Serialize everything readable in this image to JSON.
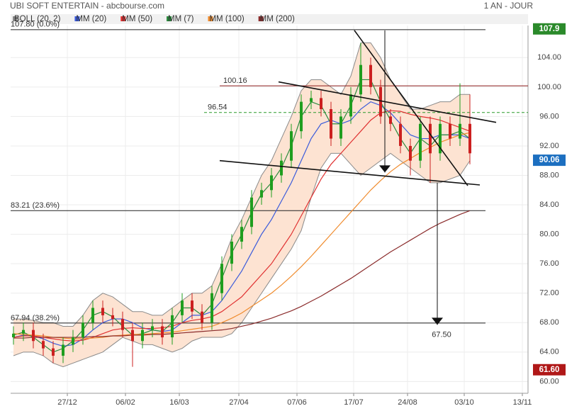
{
  "chart_data": {
    "type": "candlestick",
    "title": "UBI SOFT ENTERTAIN - abcbourse.com",
    "subtitle": "1 AN - JOUR",
    "xlim": [
      -40,
      325
    ],
    "ylim": [
      58.4,
      109.9
    ],
    "xticks": [
      {
        "value": 0,
        "label": "27/12"
      },
      {
        "value": 41,
        "label": "06/02"
      },
      {
        "value": 79,
        "label": "16/03"
      },
      {
        "value": 121,
        "label": "27/04"
      },
      {
        "value": 162,
        "label": "07/06"
      },
      {
        "value": 202,
        "label": "17/07"
      },
      {
        "value": 240,
        "label": "24/08"
      },
      {
        "value": 280,
        "label": "03/10"
      },
      {
        "value": 321,
        "label": "13/11"
      }
    ],
    "yticks": [
      {
        "value": 60,
        "label": "60.00"
      },
      {
        "value": 64,
        "label": "64.00"
      },
      {
        "value": 68,
        "label": "68.00"
      },
      {
        "value": 72,
        "label": "72.00"
      },
      {
        "value": 76,
        "label": "76.00"
      },
      {
        "value": 80,
        "label": "80.00"
      },
      {
        "value": 84,
        "label": "84.00"
      },
      {
        "value": 88,
        "label": "88.00"
      },
      {
        "value": 92,
        "label": "92.00"
      },
      {
        "value": 96,
        "label": "96.00"
      },
      {
        "value": 100,
        "label": "100.00"
      },
      {
        "value": 104,
        "label": "104.00"
      }
    ],
    "grid": true,
    "x": [
      -38,
      -31,
      -24,
      -17,
      -10,
      -3,
      4,
      11,
      18,
      25,
      32,
      39,
      46,
      53,
      60,
      67,
      74,
      81,
      88,
      95,
      102,
      109,
      116,
      123,
      130,
      137,
      144,
      151,
      158,
      165,
      172,
      179,
      186,
      193,
      200,
      207,
      214,
      221,
      228,
      235,
      242,
      249,
      256,
      263,
      270,
      277,
      284
    ],
    "open": [
      66,
      66.5,
      67,
      65.5,
      64.5,
      63.5,
      65,
      66,
      68,
      70,
      69,
      68.5,
      67,
      65.5,
      67,
      67.5,
      66,
      69,
      71,
      69.5,
      68,
      72,
      76,
      79,
      81,
      85,
      86,
      88,
      90,
      94,
      98,
      98.5,
      97,
      93,
      96,
      99,
      103,
      100,
      96,
      95,
      92,
      90,
      95,
      91,
      95,
      93,
      95
    ],
    "high": [
      67.5,
      68,
      68,
      66.5,
      65.5,
      66,
      67,
      69,
      71,
      71,
      70,
      69.5,
      68,
      68,
      68.5,
      68.5,
      70,
      72,
      72,
      70.5,
      73,
      77,
      80,
      82,
      86,
      87,
      89,
      91,
      95,
      99,
      99.5,
      99.5,
      98,
      97,
      100,
      106,
      104,
      101,
      97,
      96,
      93,
      96,
      96,
      96,
      96,
      100.5,
      99
    ],
    "low": [
      65,
      65.5,
      64.5,
      63.5,
      62.5,
      62.5,
      64,
      65,
      67,
      68,
      67.5,
      66,
      62,
      64.5,
      66,
      65,
      65,
      68,
      68.5,
      67,
      67,
      71,
      75,
      78,
      80,
      84,
      85,
      87,
      89,
      93,
      97,
      96,
      92,
      92,
      95,
      98,
      99,
      95,
      94,
      91,
      88,
      89,
      87,
      90,
      92,
      92,
      89.5
    ],
    "close": [
      66.5,
      67,
      65.5,
      64.5,
      63.5,
      65,
      66,
      68,
      70,
      69,
      68.5,
      67,
      65.5,
      67,
      67.5,
      66,
      69,
      71,
      69.5,
      68,
      72,
      76,
      79,
      81,
      85,
      86,
      88,
      90,
      94,
      98,
      98.5,
      97,
      93,
      96,
      99,
      103,
      100,
      96,
      95,
      92,
      90,
      95,
      91,
      95,
      93,
      95,
      91
    ],
    "up_color": "#1f9e1f",
    "down_color": "#cc2020",
    "bollinger": {
      "name": "BOLL (20, 2)",
      "color": "#8a8a8a",
      "fill": "#fde3d2",
      "upper": [
        68.5,
        68.5,
        68.3,
        68,
        68,
        67.5,
        67.5,
        69,
        71,
        72,
        71.5,
        70.5,
        69.5,
        69.5,
        69,
        69,
        70,
        71,
        72,
        72,
        73,
        76,
        79.5,
        82,
        85,
        88,
        90,
        93,
        96,
        99.5,
        101,
        101,
        100,
        99,
        101.5,
        106,
        106,
        104,
        101,
        99,
        97,
        97,
        97.5,
        98,
        98,
        99,
        99
      ],
      "lower": [
        63.5,
        64,
        64,
        63.5,
        62.5,
        62,
        62.5,
        63,
        63.5,
        64,
        65,
        66,
        65.5,
        65,
        65,
        64.5,
        64,
        64.5,
        65.5,
        66,
        66,
        66,
        66.5,
        68,
        70,
        72,
        74,
        76,
        78,
        80.5,
        85,
        89,
        91,
        91,
        89.5,
        88,
        89,
        90,
        91,
        90,
        89,
        88,
        87,
        87,
        87.5,
        88,
        90
      ]
    },
    "series": [
      {
        "name": "MM (20)",
        "color": "#3b5bdb",
        "values": [
          66,
          66.3,
          66.2,
          65.8,
          65.2,
          64.8,
          65,
          65.8,
          67,
          68,
          68.5,
          68.5,
          68,
          67.3,
          67,
          66.8,
          67,
          68,
          69,
          69,
          69.5,
          71,
          73,
          75,
          77.5,
          80,
          82,
          84.5,
          87,
          90,
          93,
          95,
          95.5,
          95,
          95.5,
          97,
          98,
          97.5,
          96.5,
          95,
          93.5,
          93,
          93,
          93.5,
          93.5,
          93.5,
          93
        ]
      },
      {
        "name": "MM (50)",
        "color": "#e03131",
        "values": [
          66,
          66.2,
          66.2,
          66,
          65.8,
          65.6,
          65.5,
          65.6,
          66,
          66.5,
          67,
          67.2,
          67.3,
          67.2,
          67.2,
          67.3,
          67.5,
          68,
          68.3,
          68.5,
          68.8,
          69.5,
          70.5,
          71.5,
          73,
          74.5,
          76,
          78,
          80,
          82.5,
          85,
          87.5,
          89.5,
          91,
          92.5,
          94,
          95.5,
          96.5,
          96.8,
          96.7,
          96.3,
          96,
          95.8,
          95.5,
          95,
          94.5,
          94
        ]
      },
      {
        "name": "MM (7)",
        "color": "#2b8a3e",
        "values": [
          66.3,
          66.7,
          66,
          65,
          64,
          64.5,
          65.5,
          67,
          69,
          69.5,
          68.8,
          67.5,
          66.3,
          66.5,
          67,
          66.8,
          68,
          70,
          70,
          69,
          70.5,
          74,
          77.5,
          80,
          83,
          85.5,
          87,
          89,
          92,
          96,
          98,
          97.5,
          95,
          95,
          97.5,
          101,
          101,
          98,
          95.5,
          93,
          91,
          93,
          92,
          93.5,
          93.5,
          94,
          93
        ]
      },
      {
        "name": "MM (100)",
        "color": "#f08c2e",
        "values": [
          66.5,
          66.4,
          66.3,
          66.2,
          66,
          65.9,
          65.8,
          65.8,
          65.9,
          66,
          66.2,
          66.3,
          66.4,
          66.4,
          66.5,
          66.6,
          66.7,
          66.9,
          67.1,
          67.3,
          67.5,
          68,
          68.6,
          69.3,
          70.2,
          71.1,
          72,
          73.1,
          74.3,
          75.6,
          77,
          78.5,
          80,
          81.5,
          83,
          84.5,
          86,
          87.3,
          88.5,
          89.5,
          90.3,
          91.1,
          91.8,
          92.5,
          93,
          93.5,
          93.8
        ]
      },
      {
        "name": "MM (200)",
        "color": "#8b2c2c",
        "values": [
          65.9,
          65.9,
          66,
          66,
          66,
          66,
          66,
          66,
          66.1,
          66.1,
          66.2,
          66.2,
          66.3,
          66.3,
          66.4,
          66.4,
          66.5,
          66.6,
          66.7,
          66.8,
          66.9,
          67,
          67.2,
          67.5,
          67.8,
          68.2,
          68.6,
          69.1,
          69.6,
          70.2,
          70.9,
          71.6,
          72.4,
          73.2,
          74,
          74.9,
          75.8,
          76.7,
          77.6,
          78.4,
          79.2,
          80,
          80.8,
          81.5,
          82.1,
          82.7,
          83.2
        ]
      }
    ],
    "fibonacci": [
      {
        "value": 107.8,
        "label": "107.80 (0.0%)"
      },
      {
        "value": 83.21,
        "label": "83.21 (23.6%)"
      },
      {
        "value": 67.94,
        "label": "67.94 (38.2%)"
      }
    ],
    "levels": [
      {
        "value": 100.16,
        "label": "100.16",
        "color": "#8b1a1a"
      },
      {
        "value": 96.54,
        "label": "96.54",
        "color": "#2a9a2a",
        "dashed": true
      }
    ],
    "trendlines": [
      {
        "x": [
          202.5,
          282.5
        ],
        "y": [
          107.7,
          86.6
        ]
      },
      {
        "x": [
          149,
          302.5
        ],
        "y": [
          100.7,
          95.2
        ]
      },
      {
        "x": [
          107.5,
          291
        ],
        "y": [
          90.0,
          86.7
        ]
      },
      {
        "x": [
          224,
          224
        ],
        "y": [
          107.7,
          88.4
        ],
        "arrow": true
      },
      {
        "x": [
          261,
          261
        ],
        "y": [
          87,
          67.7
        ],
        "arrow": true
      }
    ],
    "target": {
      "value": 67.5,
      "label": "67.50",
      "x": 264
    },
    "price_badges": [
      {
        "value": 107.9,
        "label": "107.9",
        "color": "#2b8a2b"
      },
      {
        "value": 90.06,
        "label": "90.06",
        "color": "#1c6fc0"
      },
      {
        "value": 61.6,
        "label": "61.60",
        "color": "#b01818"
      }
    ]
  }
}
